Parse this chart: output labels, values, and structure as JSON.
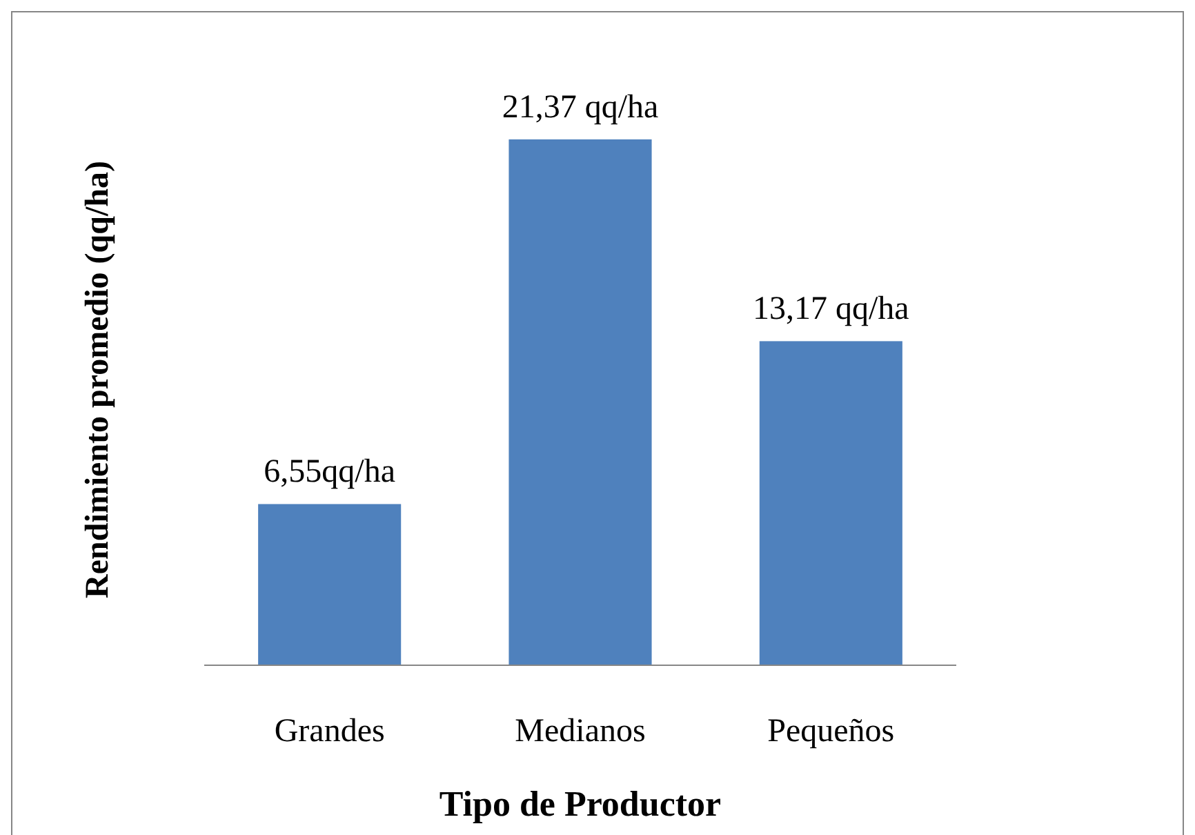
{
  "chart_data": {
    "type": "bar",
    "xlabel": "Tipo de Productor",
    "ylabel": "Rendimiento promedio (qq/ha)",
    "categories": [
      "Grandes",
      "Medianos",
      "Pequeños"
    ],
    "values": [
      6.55,
      21.37,
      13.17
    ],
    "color": "#4f81bd",
    "value_labels": [
      "6,55qq/ha",
      "21,37 qq/ha",
      "13,17 qq/ha"
    ]
  }
}
